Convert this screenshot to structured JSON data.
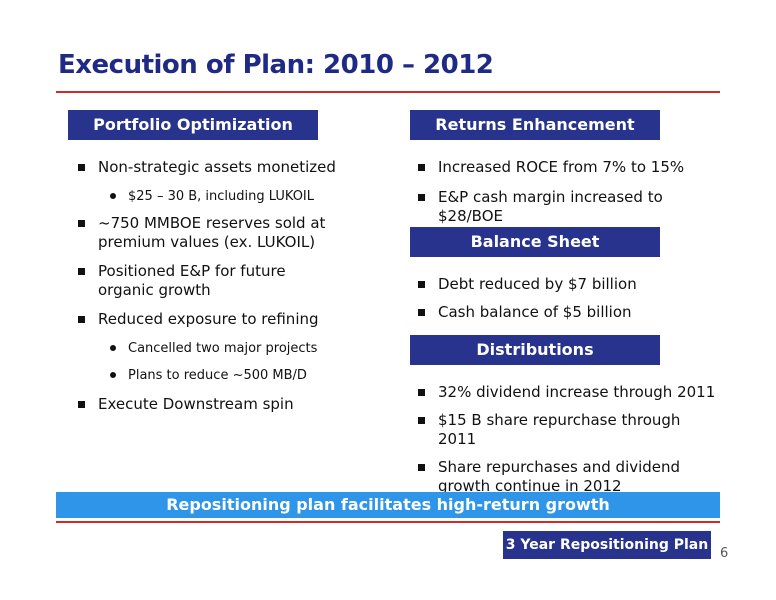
{
  "title": "Execution of Plan: 2010 – 2012",
  "sections": {
    "portfolio": {
      "header": "Portfolio Optimization",
      "items": [
        "Non-strategic assets monetized",
        "$25 – 30 B, including LUKOIL",
        "~750 MMBOE reserves sold at premium values (ex. LUKOIL)",
        "Positioned E&P for future organic growth",
        "Reduced exposure to refining",
        "Cancelled two major projects",
        "Plans to reduce ~500 MB/D",
        "Execute Downstream spin"
      ]
    },
    "returns": {
      "header": "Returns Enhancement",
      "items": [
        "Increased ROCE from 7% to 15%",
        "E&P cash margin increased to $28/BOE"
      ]
    },
    "balance": {
      "header": "Balance Sheet",
      "items": [
        "Debt reduced by $7 billion",
        "Cash balance of $5 billion"
      ]
    },
    "distributions": {
      "header": "Distributions",
      "items": [
        "32% dividend increase through 2011",
        "$15 B share repurchase through 2011",
        "Share repurchases and dividend growth continue in 2012"
      ]
    }
  },
  "banner": "Repositioning plan facilitates high-return growth",
  "footer_box": "3 Year Repositioning Plan",
  "page_number": "6",
  "colors": {
    "title": "#1f2a86",
    "header_bg": "#27338c",
    "banner_bg": "#2f95e8",
    "rule": "#d22a2a"
  }
}
